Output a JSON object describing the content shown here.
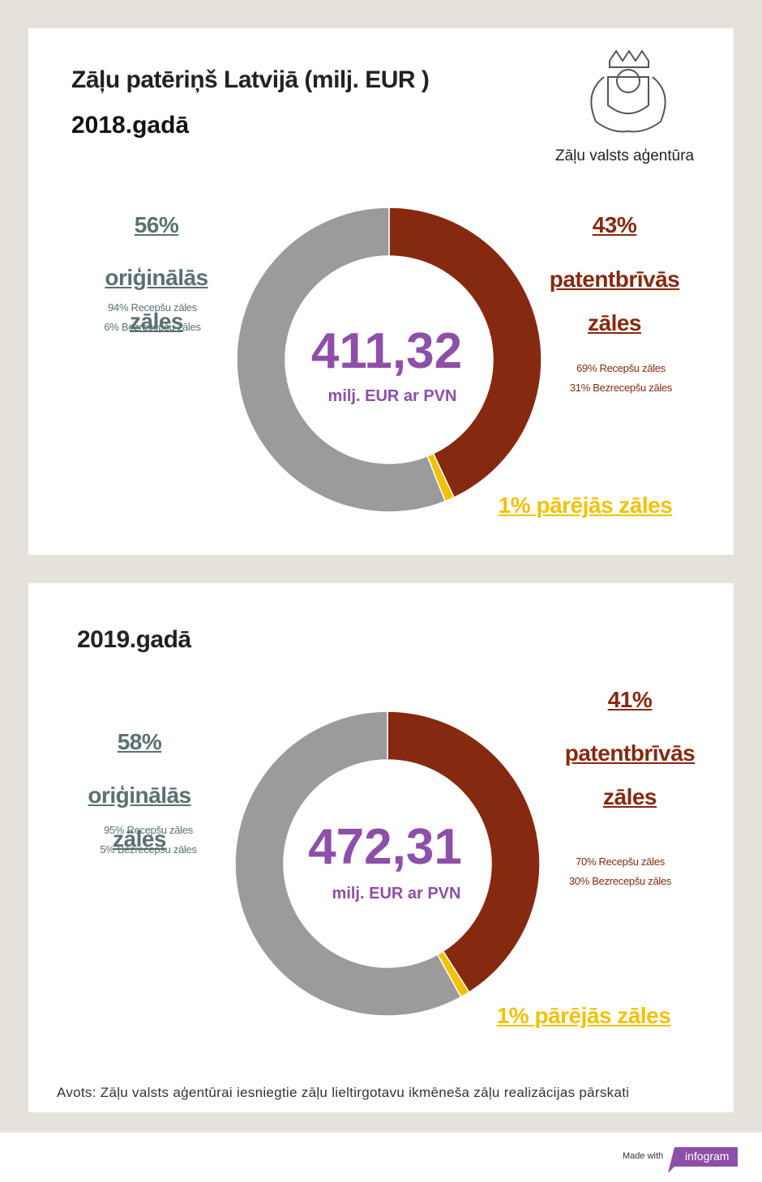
{
  "header": {
    "logo_text": "Zāļu valsts aģentūra"
  },
  "chart_data": [
    {
      "type": "pie",
      "title": "Zāļu patēriņš Latvijā (milj. EUR )",
      "subtitle": "2018.gadā",
      "categories": [
        "patentbrīvās zāles",
        "pārējās zāles",
        "oriģinālās zāles"
      ],
      "values": [
        43,
        1,
        56
      ],
      "value_labels": [
        "43%",
        "1%",
        "56%"
      ],
      "colors": [
        "#852a10",
        "#f2c200",
        "#9b9b9b"
      ],
      "details": [
        [
          "69%  Recepšu zāles",
          "31%  Bezrecepšu zāles"
        ],
        null,
        [
          "94%  Recepšu zāles",
          "6%  Bezrecepšu zāles"
        ]
      ],
      "center_value": "411,32",
      "center_text": "milj. EUR ar PVN"
    },
    {
      "type": "pie",
      "title": "2019.gadā",
      "categories": [
        "patentbrīvās zāles",
        "pārējās zāles",
        "oriģinālās zāles"
      ],
      "values": [
        41,
        1,
        58
      ],
      "value_labels": [
        "41%",
        "1%",
        "58%"
      ],
      "colors": [
        "#852a10",
        "#f2c200",
        "#9b9b9b"
      ],
      "details": [
        [
          "70%  Recepšu zāles",
          "30%  Bezrecepšu zāles"
        ],
        null,
        [
          "95%  Recepšu zāles",
          "5%  Bezrecepšu zāles"
        ]
      ],
      "center_value": "472,31",
      "center_text": "milj. EUR ar PVN"
    }
  ],
  "source": "Avots: Zāļu valsts aģentūrai iesniegtie zāļu lieltirgotavu ikmēneša zāļu realizācijas pārskati",
  "footer": {
    "made_with": "Made with",
    "brand": "infogram"
  }
}
